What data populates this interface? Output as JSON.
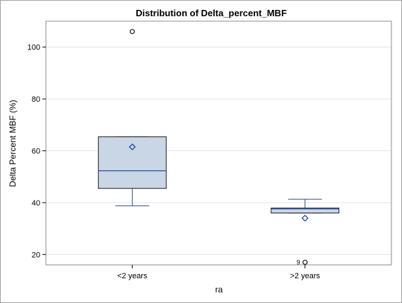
{
  "chart_data": {
    "type": "box",
    "title": "Distribution of Delta_percent_MBF",
    "xlabel": "ra",
    "ylabel": "Delta Percent MBF (%)",
    "ylim": [
      16,
      110
    ],
    "yticks": [
      20,
      40,
      60,
      80,
      100
    ],
    "grid": "horizontal",
    "categories": [
      "<2 years",
      ">2 years"
    ],
    "boxes": [
      {
        "category": "<2 years",
        "whisker_low": 38.8,
        "q1": 45.5,
        "median": 52.3,
        "q3": 65.4,
        "whisker_high": 65.4,
        "mean": 61.5,
        "outliers": [
          {
            "value": 106,
            "label": ""
          }
        ]
      },
      {
        "category": ">2 years",
        "whisker_low": 36.0,
        "q1": 36.0,
        "median": 37.6,
        "q3": 37.9,
        "whisker_high": 41.3,
        "mean": 34.0,
        "outliers": [
          {
            "value": 17,
            "label": "9"
          }
        ]
      }
    ],
    "colors": {
      "box_fill": "#c9d6e6",
      "box_edge": "#1a1a1a",
      "median_line": "#2c4a9a",
      "whisker": "#2c4a9a",
      "mean_marker": "#2c4a9a",
      "outlier": "#1a1a1a",
      "grid": "#e4e4e4",
      "plot_border": "#8c8c8c"
    }
  }
}
